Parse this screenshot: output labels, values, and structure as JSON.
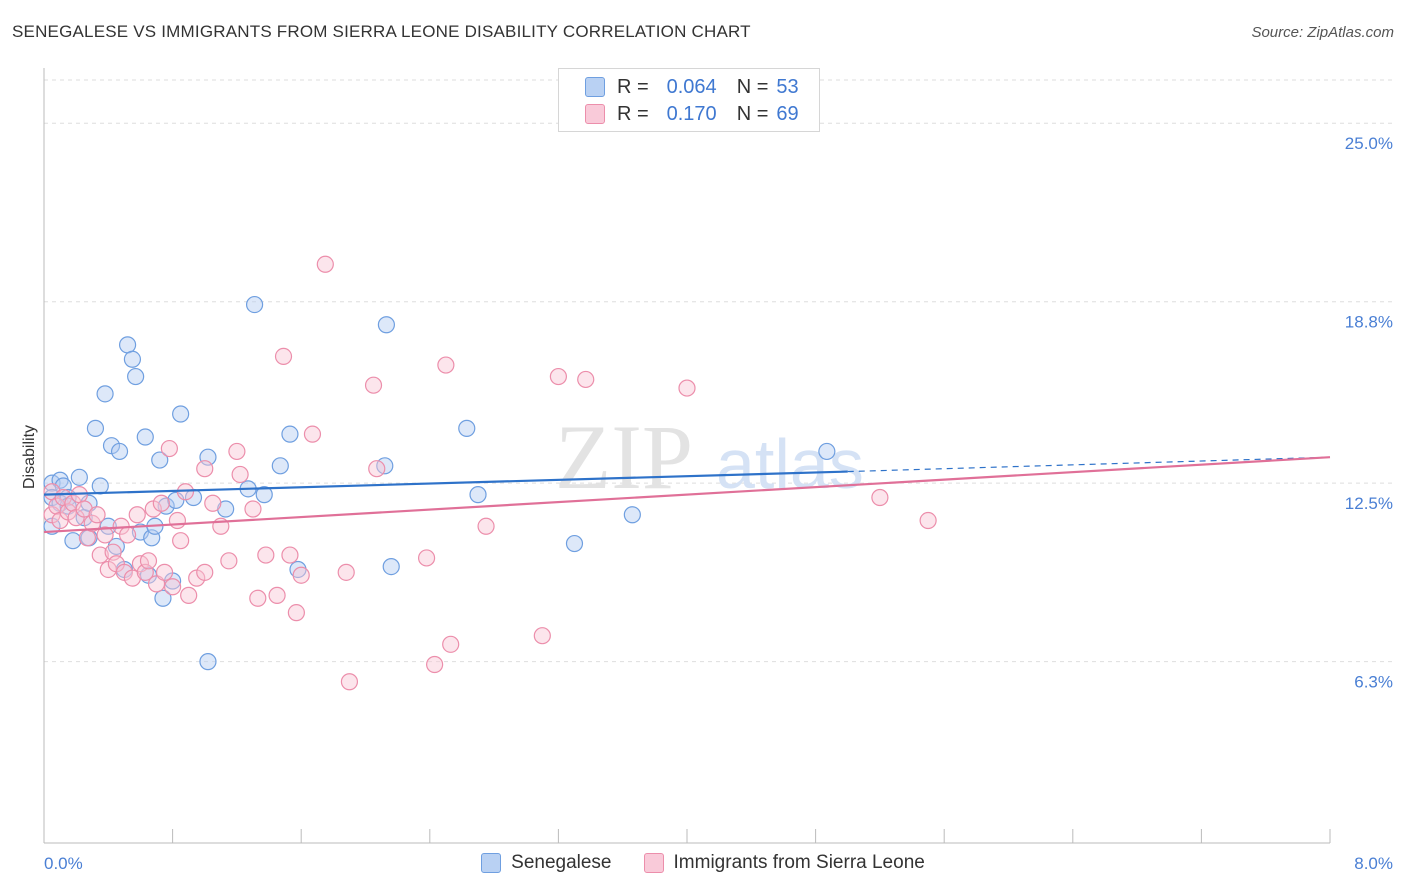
{
  "header": {
    "title": "SENEGALESE VS IMMIGRANTS FROM SIERRA LEONE DISABILITY CORRELATION CHART",
    "source": "Source: ZipAtlas.com"
  },
  "legend_box": {
    "rows": [
      {
        "r_label": "R =",
        "r_value": "0.064",
        "n_label": "N =",
        "n_value": "53",
        "color": "#a9c6ef"
      },
      {
        "r_label": "R =",
        "r_value": "0.170",
        "n_label": "N =",
        "n_value": "69",
        "color": "#f6b8cb"
      }
    ]
  },
  "watermark": {
    "zip": "ZIP",
    "atlas": "atlas"
  },
  "chart_data": {
    "type": "scatter",
    "xlabel": "",
    "ylabel": "Disability",
    "xlim": [
      0,
      8.0
    ],
    "ylim": [
      0,
      26.5
    ],
    "x_tick_labels": [
      "0.0%",
      "8.0%"
    ],
    "y_ticks": [
      6.3,
      12.5,
      18.8,
      25.0
    ],
    "y_tick_labels": [
      "6.3%",
      "12.5%",
      "18.8%",
      "25.0%"
    ],
    "grid": true,
    "legend_position": "bottom-center",
    "series": [
      {
        "name": "Senegalese",
        "color": "#6f9fe0",
        "fill": "#b3cdf2",
        "trend": {
          "x": [
            0.0,
            5.0
          ],
          "y": [
            12.1,
            12.9
          ],
          "color": "#2e72c9",
          "dash_to": 8.0,
          "dash_y": 13.4
        },
        "points": [
          [
            0.05,
            12.5
          ],
          [
            0.05,
            12.0
          ],
          [
            0.1,
            11.8
          ],
          [
            0.1,
            12.6
          ],
          [
            0.12,
            12.4
          ],
          [
            0.15,
            12.0
          ],
          [
            0.15,
            11.7
          ],
          [
            0.18,
            10.5
          ],
          [
            0.22,
            12.7
          ],
          [
            0.25,
            11.3
          ],
          [
            0.28,
            11.8
          ],
          [
            0.28,
            10.6
          ],
          [
            0.32,
            14.4
          ],
          [
            0.35,
            12.4
          ],
          [
            0.38,
            15.6
          ],
          [
            0.4,
            11.0
          ],
          [
            0.42,
            13.8
          ],
          [
            0.45,
            10.3
          ],
          [
            0.47,
            13.6
          ],
          [
            0.5,
            9.5
          ],
          [
            0.52,
            17.3
          ],
          [
            0.55,
            16.8
          ],
          [
            0.57,
            16.2
          ],
          [
            0.6,
            10.8
          ],
          [
            0.63,
            14.1
          ],
          [
            0.65,
            9.3
          ],
          [
            0.67,
            10.6
          ],
          [
            0.69,
            11.0
          ],
          [
            0.72,
            13.3
          ],
          [
            0.74,
            8.5
          ],
          [
            0.76,
            11.7
          ],
          [
            0.8,
            9.1
          ],
          [
            0.82,
            11.9
          ],
          [
            0.85,
            14.9
          ],
          [
            0.93,
            12.0
          ],
          [
            1.02,
            13.4
          ],
          [
            1.02,
            6.3
          ],
          [
            1.13,
            11.6
          ],
          [
            1.27,
            12.3
          ],
          [
            1.31,
            18.7
          ],
          [
            1.37,
            12.1
          ],
          [
            1.47,
            13.1
          ],
          [
            1.53,
            14.2
          ],
          [
            1.58,
            9.5
          ],
          [
            2.12,
            13.1
          ],
          [
            2.13,
            18.0
          ],
          [
            2.16,
            9.6
          ],
          [
            2.63,
            14.4
          ],
          [
            2.7,
            12.1
          ],
          [
            3.3,
            10.4
          ],
          [
            3.66,
            11.4
          ],
          [
            4.87,
            13.6
          ],
          [
            0.05,
            11.0
          ]
        ]
      },
      {
        "name": "Immigrants from Sierra Leone",
        "color": "#ec8eab",
        "fill": "#f8c5d5",
        "trend": {
          "x": [
            0.0,
            8.0
          ],
          "y": [
            10.8,
            13.4
          ],
          "color": "#e07098"
        },
        "points": [
          [
            0.05,
            11.4
          ],
          [
            0.05,
            12.2
          ],
          [
            0.08,
            11.7
          ],
          [
            0.1,
            11.2
          ],
          [
            0.12,
            12.0
          ],
          [
            0.15,
            11.5
          ],
          [
            0.18,
            11.8
          ],
          [
            0.2,
            11.3
          ],
          [
            0.22,
            12.1
          ],
          [
            0.25,
            11.6
          ],
          [
            0.27,
            10.6
          ],
          [
            0.3,
            11.1
          ],
          [
            0.33,
            11.4
          ],
          [
            0.35,
            10.0
          ],
          [
            0.38,
            10.7
          ],
          [
            0.4,
            9.5
          ],
          [
            0.43,
            10.1
          ],
          [
            0.45,
            9.7
          ],
          [
            0.48,
            11.0
          ],
          [
            0.5,
            9.4
          ],
          [
            0.52,
            10.7
          ],
          [
            0.55,
            9.2
          ],
          [
            0.58,
            11.4
          ],
          [
            0.6,
            9.7
          ],
          [
            0.63,
            9.4
          ],
          [
            0.65,
            9.8
          ],
          [
            0.68,
            11.6
          ],
          [
            0.7,
            9.0
          ],
          [
            0.73,
            11.8
          ],
          [
            0.75,
            9.4
          ],
          [
            0.78,
            13.7
          ],
          [
            0.8,
            8.9
          ],
          [
            0.83,
            11.2
          ],
          [
            0.85,
            10.5
          ],
          [
            0.88,
            12.2
          ],
          [
            0.9,
            8.6
          ],
          [
            0.95,
            9.2
          ],
          [
            1.0,
            13.0
          ],
          [
            1.0,
            9.4
          ],
          [
            1.05,
            11.8
          ],
          [
            1.1,
            11.0
          ],
          [
            1.15,
            9.8
          ],
          [
            1.2,
            13.6
          ],
          [
            1.22,
            12.8
          ],
          [
            1.3,
            11.6
          ],
          [
            1.33,
            8.5
          ],
          [
            1.38,
            10.0
          ],
          [
            1.45,
            8.6
          ],
          [
            1.49,
            16.9
          ],
          [
            1.53,
            10.0
          ],
          [
            1.57,
            8.0
          ],
          [
            1.6,
            9.3
          ],
          [
            1.67,
            14.2
          ],
          [
            1.75,
            20.1
          ],
          [
            1.88,
            9.4
          ],
          [
            1.9,
            5.6
          ],
          [
            2.05,
            15.9
          ],
          [
            2.07,
            13.0
          ],
          [
            2.38,
            9.9
          ],
          [
            2.43,
            6.2
          ],
          [
            2.5,
            16.6
          ],
          [
            2.53,
            6.9
          ],
          [
            2.75,
            11.0
          ],
          [
            3.1,
            7.2
          ],
          [
            3.2,
            16.2
          ],
          [
            3.37,
            16.1
          ],
          [
            4.0,
            15.8
          ],
          [
            5.2,
            12.0
          ],
          [
            5.5,
            11.2
          ]
        ]
      }
    ]
  }
}
